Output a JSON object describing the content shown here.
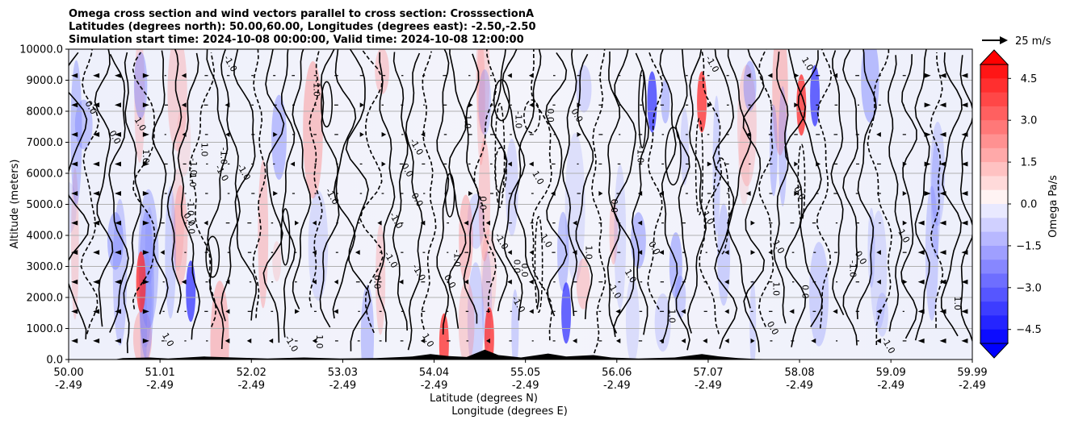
{
  "chart_data": {
    "type": "heatmap",
    "title_lines": [
      "Omega cross section and wind vectors parallel to cross section: CrosssectionA",
      "Latitudes (degrees north): 50.00,60.00, Longitudes (degrees east): -2.50,-2.50",
      "Simulation start time: 2024-10-08 00:00:00, Valid time: 2024-10-08 12:00:00"
    ],
    "ylabel": "Altitude (meters)",
    "xlabel_lines": [
      "Latitude (degrees N)",
      "Longitude (degrees E)"
    ],
    "ylim": [
      0,
      10000
    ],
    "y_ticks": [
      "0.0",
      "1000.0",
      "2000.0",
      "3000.0",
      "4000.0",
      "5000.0",
      "6000.0",
      "7000.0",
      "8000.0",
      "9000.0",
      "10000.0"
    ],
    "x_ticks": [
      {
        "lat": "50.00",
        "lon": "-2.49"
      },
      {
        "lat": "51.01",
        "lon": "-2.49"
      },
      {
        "lat": "52.02",
        "lon": "-2.49"
      },
      {
        "lat": "53.03",
        "lon": "-2.49"
      },
      {
        "lat": "54.04",
        "lon": "-2.49"
      },
      {
        "lat": "55.05",
        "lon": "-2.49"
      },
      {
        "lat": "56.06",
        "lon": "-2.49"
      },
      {
        "lat": "57.07",
        "lon": "-2.49"
      },
      {
        "lat": "58.08",
        "lon": "-2.49"
      },
      {
        "lat": "59.09",
        "lon": "-2.49"
      },
      {
        "lat": "59.99",
        "lon": "-2.49"
      }
    ],
    "xlim": [
      50.0,
      59.99
    ],
    "grid": true,
    "colorbar": {
      "label": "Omega Pa/s",
      "ticks": [
        "4.5",
        "3.0",
        "1.5",
        "0.0",
        "−1.5",
        "−3.0",
        "−4.5"
      ],
      "range": [
        -5,
        5
      ]
    },
    "vector_key": {
      "label": "25 m/s"
    },
    "contour_labels": [
      "0.0",
      "-1.0",
      "1.0"
    ],
    "colors": {
      "positive": "#ff0000",
      "negative": "#0000ff",
      "neutral": "#ffffff",
      "terrain": "#000000"
    }
  }
}
